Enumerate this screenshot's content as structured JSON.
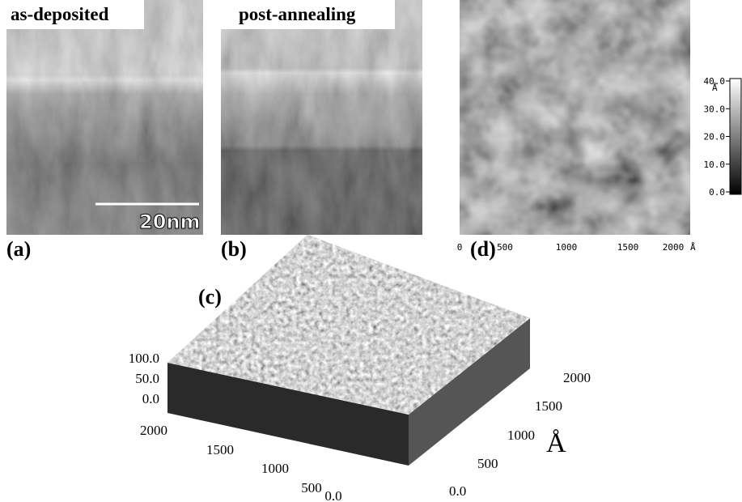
{
  "panels": {
    "a": {
      "label": "(a)",
      "title": "as-deposited",
      "scale_bar": "20nm"
    },
    "b": {
      "label": "(b)",
      "title": "post-annealing"
    },
    "d": {
      "label": "(d)",
      "colorbar_unit": "Å",
      "colorbar_ticks": [
        "40.0",
        "30.0",
        "20.0",
        "10.0",
        "0.0"
      ],
      "x_ticks": [
        "0",
        "500",
        "1000",
        "1500",
        "2000"
      ],
      "x_unit": "Å"
    },
    "c": {
      "label": "(c)",
      "z_ticks": [
        "100.0",
        "50.0",
        "0.0"
      ],
      "left_ticks": [
        "2000",
        "1500",
        "1000",
        "500",
        "0.0"
      ],
      "right_ticks": [
        "2000",
        "1500",
        "1000",
        "500",
        "0.0"
      ],
      "unit": "Å"
    }
  }
}
